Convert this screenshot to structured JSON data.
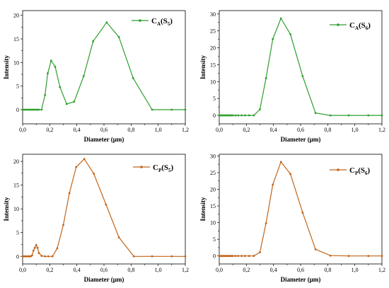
{
  "chart_data": [
    {
      "type": "line",
      "color": "#2e9e2e",
      "legend": {
        "main": "C",
        "sub1": "A",
        "open": "(S",
        "sub2": "5",
        "close": ")",
        "placement": "top-right"
      },
      "xlabel": "Diameter (μm)",
      "ylabel": "Intensity",
      "xlim": [
        0,
        1.2
      ],
      "ylim": [
        -3,
        21
      ],
      "xticks": [
        "0,0",
        "0,2",
        "0,4",
        "0,6",
        "0,8",
        "1,0",
        "1,2"
      ],
      "yticks": [
        0,
        5,
        10,
        15,
        20
      ],
      "x": [
        0.0,
        0.01,
        0.02,
        0.03,
        0.04,
        0.05,
        0.06,
        0.07,
        0.08,
        0.09,
        0.1,
        0.11,
        0.12,
        0.14,
        0.165,
        0.185,
        0.21,
        0.24,
        0.275,
        0.325,
        0.38,
        0.45,
        0.52,
        0.62,
        0.71,
        0.815,
        0.955,
        1.1,
        1.2
      ],
      "y": [
        0,
        0,
        0,
        0,
        0,
        0,
        0,
        0,
        0,
        0,
        0,
        0,
        0,
        0,
        3.1,
        7.7,
        10.4,
        9.1,
        4.8,
        1.2,
        1.7,
        7.1,
        14.5,
        18.5,
        15.4,
        6.7,
        0,
        0,
        0
      ]
    },
    {
      "type": "line",
      "color": "#2e9e2e",
      "legend": {
        "main": "C",
        "sub1": "A",
        "open": "(S",
        "sub2": "6",
        "close": ")",
        "placement": "top-right"
      },
      "xlabel": "Diameter (μm)",
      "ylabel": "Intensity",
      "xlim": [
        0,
        1.2
      ],
      "ylim": [
        -2.5,
        31
      ],
      "xticks": [
        "0,0",
        "0,2",
        "0,4",
        "0,6",
        "0,8",
        "1,0",
        "1,2"
      ],
      "yticks": [
        0,
        5,
        10,
        15,
        20,
        25,
        30
      ],
      "x": [
        0.0,
        0.01,
        0.02,
        0.03,
        0.04,
        0.05,
        0.06,
        0.07,
        0.08,
        0.09,
        0.1,
        0.12,
        0.14,
        0.165,
        0.19,
        0.22,
        0.255,
        0.3,
        0.345,
        0.395,
        0.455,
        0.525,
        0.615,
        0.71,
        0.82,
        0.955,
        1.1,
        1.2
      ],
      "y": [
        0,
        0,
        0,
        0,
        0,
        0,
        0,
        0,
        0,
        0,
        0,
        0,
        0,
        0,
        0,
        0,
        0,
        1.8,
        11,
        22.6,
        28.7,
        24,
        11.6,
        0.7,
        0,
        0,
        0,
        0
      ]
    },
    {
      "type": "line",
      "color": "#c1651a",
      "legend": {
        "main": "C",
        "sub1": "P",
        "open": "(S",
        "sub2": "5",
        "close": ")",
        "placement": "top-right"
      },
      "xlabel": "Diameter (μm)",
      "ylabel": "Intensity",
      "xlim": [
        0,
        1.2
      ],
      "ylim": [
        -1.6,
        21.5
      ],
      "xticks": [
        "0,0",
        "0,2",
        "0,4",
        "0,6",
        "0,8",
        "1,0",
        "1,2"
      ],
      "yticks": [
        0,
        5,
        10,
        15,
        20
      ],
      "x": [
        0.0,
        0.01,
        0.02,
        0.03,
        0.04,
        0.05,
        0.06,
        0.07,
        0.08,
        0.09,
        0.1,
        0.11,
        0.12,
        0.14,
        0.165,
        0.19,
        0.22,
        0.255,
        0.3,
        0.345,
        0.395,
        0.455,
        0.525,
        0.615,
        0.71,
        0.82,
        0.955,
        1.1,
        1.2
      ],
      "y": [
        0,
        0,
        0,
        0,
        0,
        0,
        0,
        0.2,
        1.2,
        1.8,
        2.4,
        1.8,
        0.7,
        0.1,
        0,
        0,
        0,
        1.7,
        6.6,
        13.3,
        18.8,
        20.5,
        17.4,
        10.9,
        4,
        0,
        0,
        0,
        0
      ]
    },
    {
      "type": "line",
      "color": "#c1651a",
      "legend": {
        "main": "C",
        "sub1": "P",
        "open": "(S",
        "sub2": "6",
        "close": ")",
        "placement": "top-right"
      },
      "xlabel": "Diameter (μm)",
      "ylabel": "Intensity",
      "xlim": [
        0,
        1.2
      ],
      "ylim": [
        -2.4,
        30.5
      ],
      "xticks": [
        "0,0",
        "0,2",
        "0,4",
        "0,6",
        "0,8",
        "1,0",
        "1,2"
      ],
      "yticks": [
        0,
        5,
        10,
        15,
        20,
        25,
        30
      ],
      "x": [
        0.0,
        0.01,
        0.02,
        0.03,
        0.04,
        0.05,
        0.06,
        0.07,
        0.08,
        0.09,
        0.1,
        0.12,
        0.14,
        0.165,
        0.19,
        0.22,
        0.255,
        0.3,
        0.345,
        0.395,
        0.455,
        0.525,
        0.615,
        0.71,
        0.82,
        0.955,
        1.1,
        1.2
      ],
      "y": [
        0,
        0,
        0,
        0,
        0,
        0,
        0,
        0,
        0,
        0,
        0,
        0,
        0,
        0,
        0,
        0,
        0,
        1.1,
        9.8,
        21.4,
        28.2,
        24.6,
        13,
        2,
        0.1,
        0,
        0,
        0
      ]
    }
  ]
}
